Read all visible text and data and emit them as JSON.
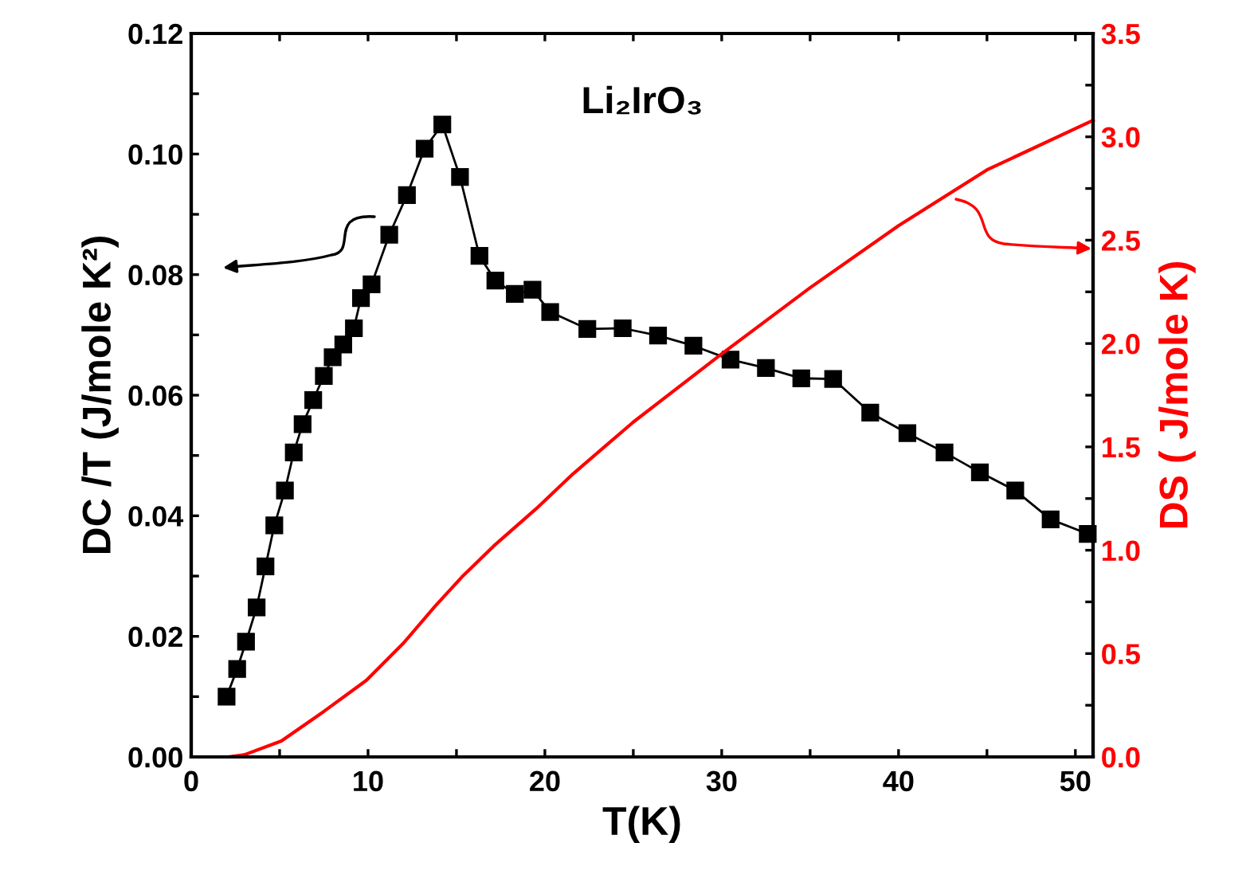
{
  "chart_data": {
    "type": "line",
    "title": "Li₂IrO₃",
    "xlabel": "T(K)",
    "ylabel": "DC /T (J/mole K²)",
    "y2label": "DS ( J/mole K)",
    "xlim": [
      0,
      51
    ],
    "xticks": [
      0,
      {
        "value": 5,
        "label": null
      },
      10,
      {
        "value": 15,
        "label": null
      },
      20,
      {
        "value": 25,
        "label": null
      },
      30,
      {
        "value": 35,
        "label": null
      },
      40,
      {
        "value": 45,
        "label": null
      },
      50
    ],
    "ylim": [
      0,
      0.12
    ],
    "yticks": [
      {
        "value": 0,
        "label": "0.00"
      },
      {
        "value": 0.01,
        "label": null
      },
      {
        "value": 0.02,
        "label": "0.02"
      },
      {
        "value": 0.03,
        "label": null
      },
      {
        "value": 0.04,
        "label": "0.04"
      },
      {
        "value": 0.05,
        "label": null
      },
      {
        "value": 0.06,
        "label": "0.06"
      },
      {
        "value": 0.07,
        "label": null
      },
      {
        "value": 0.08,
        "label": "0.08"
      },
      {
        "value": 0.09,
        "label": null
      },
      {
        "value": 0.1,
        "label": "0.10"
      },
      {
        "value": 0.11,
        "label": null
      },
      {
        "value": 0.12,
        "label": "0.12"
      }
    ],
    "y2lim": [
      0,
      3.5
    ],
    "y2ticks": [
      {
        "value": 0,
        "label": "0.0"
      },
      {
        "value": 0.25,
        "label": null
      },
      {
        "value": 0.5,
        "label": "0.5"
      },
      {
        "value": 0.75,
        "label": null
      },
      {
        "value": 1,
        "label": "1.0"
      },
      {
        "value": 1.25,
        "label": null
      },
      {
        "value": 1.5,
        "label": "1.5"
      },
      {
        "value": 1.75,
        "label": null
      },
      {
        "value": 2,
        "label": "2.0"
      },
      {
        "value": 2.25,
        "label": null
      },
      {
        "value": 2.5,
        "label": "2.5"
      },
      {
        "value": 2.75,
        "label": null
      },
      {
        "value": 3,
        "label": "3.0"
      },
      {
        "value": 3.25,
        "label": null
      },
      {
        "value": 3.5,
        "label": "3.5"
      }
    ],
    "grid": false,
    "legend": false,
    "series": [
      {
        "color": "#000000",
        "marker": "square",
        "line_style": "solid",
        "x": [
          2.0,
          2.6,
          3.1,
          3.7,
          4.2,
          4.7,
          5.3,
          5.8,
          6.3,
          6.9,
          7.5,
          8.0,
          8.6,
          9.2,
          9.6,
          10.2,
          11.2,
          12.2,
          13.2,
          14.2,
          15.2,
          16.3,
          17.2,
          18.3,
          19.3,
          20.3,
          22.4,
          24.4,
          26.4,
          28.4,
          30.5,
          32.5,
          34.5,
          36.3,
          38.4,
          40.5,
          42.6,
          44.6,
          46.6,
          48.6,
          50.7
        ],
        "values": [
          0.01,
          0.0146,
          0.0191,
          0.0248,
          0.0316,
          0.0384,
          0.0442,
          0.0505,
          0.0552,
          0.0592,
          0.0632,
          0.0663,
          0.0684,
          0.0711,
          0.0761,
          0.0784,
          0.0866,
          0.0932,
          0.1009,
          0.1049,
          0.0962,
          0.0831,
          0.079,
          0.0768,
          0.0775,
          0.0738,
          0.071,
          0.0711,
          0.0699,
          0.0682,
          0.0659,
          0.0645,
          0.0628,
          0.0627,
          0.0571,
          0.0537,
          0.0505,
          0.0472,
          0.0442,
          0.0394,
          0.037
        ]
      },
      {
        "color": "#ff0000",
        "axis": "y2",
        "marker": "none",
        "line_style": "solid",
        "x": [
          2.1,
          3.0,
          5.1,
          7.5,
          9.9,
          12.0,
          13.8,
          15.3,
          17.1,
          19.5,
          21.6,
          25.0,
          30.0,
          35.0,
          40.0,
          45.0,
          51.0
        ],
        "values": [
          0.0,
          0.01,
          0.077,
          0.22,
          0.37,
          0.55,
          0.73,
          0.87,
          1.02,
          1.2,
          1.37,
          1.62,
          1.95,
          2.27,
          2.57,
          2.84,
          3.08
        ]
      }
    ]
  }
}
